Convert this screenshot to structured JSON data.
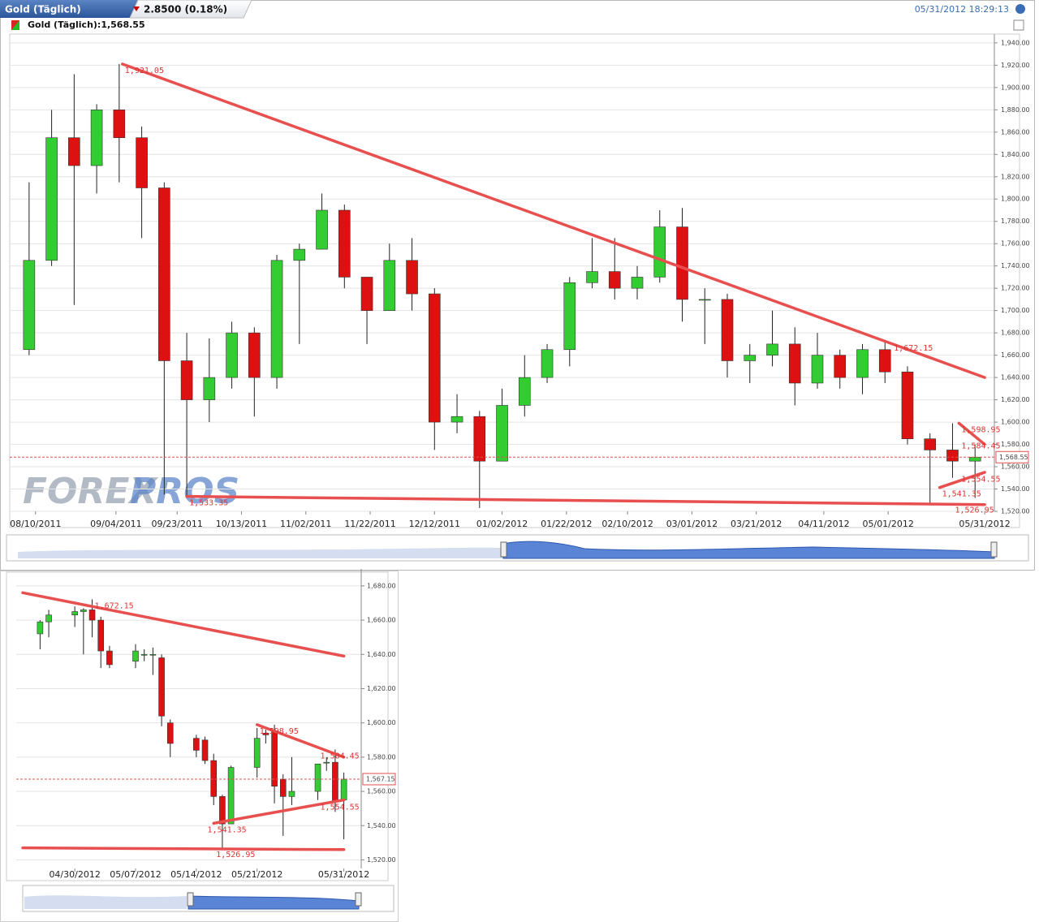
{
  "header": {
    "instrument": "Gold (Täglich)",
    "change": "2.8500 (0.18%)",
    "timestamp": "05/31/2012 18:29:13",
    "legend": "Gold (Täglich):1,568.55",
    "watermark": [
      "FOREX",
      "PROS"
    ]
  },
  "chart_data": [
    {
      "type": "candlestick",
      "x": [
        "08/08/2011",
        "08/15/2011",
        "08/22/2011",
        "08/29/2011",
        "09/05/2011",
        "09/12/2011",
        "09/19/2011",
        "09/26/2011",
        "10/03/2011",
        "10/10/2011",
        "10/17/2011",
        "10/24/2011",
        "10/31/2011",
        "11/07/2011",
        "11/14/2011",
        "11/21/2011",
        "11/28/2011",
        "12/05/2011",
        "12/12/2011",
        "12/19/2011",
        "12/26/2011",
        "01/02/2012",
        "01/09/2012",
        "01/16/2012",
        "01/23/2012",
        "01/30/2012",
        "02/06/2012",
        "02/13/2012",
        "02/20/2012",
        "02/27/2012",
        "03/05/2012",
        "03/12/2012",
        "03/19/2012",
        "03/26/2012",
        "04/02/2012",
        "04/09/2012",
        "04/16/2012",
        "04/23/2012",
        "04/30/2012",
        "05/07/2012",
        "05/14/2012",
        "05/21/2012",
        "05/28/2012"
      ],
      "open": [
        1665,
        1745,
        1855,
        1830,
        1880,
        1855,
        1810,
        1655,
        1620,
        1640,
        1680,
        1640,
        1745,
        1755,
        1790,
        1730,
        1700,
        1745,
        1715,
        1600,
        1605,
        1565,
        1615,
        1640,
        1665,
        1725,
        1735,
        1720,
        1730,
        1775,
        1710,
        1710,
        1655,
        1660,
        1670,
        1635,
        1660,
        1640,
        1665,
        1645,
        1585,
        1575,
        1565
      ],
      "high": [
        1815,
        1880,
        1912,
        1885,
        1921.05,
        1865,
        1815,
        1680,
        1675,
        1690,
        1685,
        1750,
        1760,
        1805,
        1795,
        1730,
        1760,
        1765,
        1720,
        1625,
        1610,
        1630,
        1660,
        1670,
        1730,
        1765,
        1765,
        1740,
        1790,
        1792,
        1720,
        1715,
        1670,
        1700,
        1685,
        1680,
        1665,
        1670,
        1672.15,
        1650,
        1590,
        1598.95,
        1580
      ],
      "low": [
        1660,
        1740,
        1705,
        1805,
        1815,
        1765,
        1535,
        1533.35,
        1600,
        1630,
        1605,
        1630,
        1670,
        1755,
        1720,
        1670,
        1700,
        1700,
        1575,
        1590,
        1523,
        1565,
        1605,
        1635,
        1650,
        1720,
        1710,
        1710,
        1725,
        1690,
        1670,
        1640,
        1635,
        1650,
        1615,
        1630,
        1630,
        1625,
        1635,
        1580,
        1526.95,
        1550,
        1532
      ],
      "close": [
        1745,
        1855,
        1830,
        1880,
        1855,
        1810,
        1655,
        1620,
        1640,
        1680,
        1640,
        1745,
        1755,
        1790,
        1730,
        1700,
        1745,
        1715,
        1600,
        1605,
        1565,
        1615,
        1640,
        1665,
        1725,
        1735,
        1720,
        1730,
        1775,
        1710,
        1710,
        1655,
        1660,
        1670,
        1635,
        1660,
        1640,
        1665,
        1645,
        1585,
        1575,
        1565,
        1568.55
      ],
      "up_color": "#33cc33",
      "down_color": "#dd1111",
      "xlim": [
        "08/04/2011",
        "06/03/2012"
      ],
      "xticks": [
        "08/10/2011",
        "09/04/2011",
        "09/23/2011",
        "10/13/2011",
        "11/02/2011",
        "11/22/2011",
        "12/12/2011",
        "01/02/2012",
        "01/22/2012",
        "02/10/2012",
        "03/01/2012",
        "03/21/2012",
        "04/11/2012",
        "05/01/2012",
        "05/31/2012"
      ],
      "ylim": [
        1520,
        1945
      ],
      "yticks": [
        {
          "value": 1520,
          "label": "1,520.00"
        },
        {
          "value": 1540,
          "label": "1,540.00"
        },
        {
          "value": 1560,
          "label": "1,560.00"
        },
        {
          "value": 1580,
          "label": "1,580.00"
        },
        {
          "value": 1600,
          "label": "1,600.00"
        },
        {
          "value": 1620,
          "label": "1,620.00"
        },
        {
          "value": 1640,
          "label": "1,640.00"
        },
        {
          "value": 1660,
          "label": "1,660.00"
        },
        {
          "value": 1680,
          "label": "1,680.00"
        },
        {
          "value": 1700,
          "label": "1,700.00"
        },
        {
          "value": 1720,
          "label": "1,720.00"
        },
        {
          "value": 1740,
          "label": "1,740.00"
        },
        {
          "value": 1760,
          "label": "1,760.00"
        },
        {
          "value": 1780,
          "label": "1,780.00"
        },
        {
          "value": 1800,
          "label": "1,800.00"
        },
        {
          "value": 1820,
          "label": "1,820.00"
        },
        {
          "value": 1840,
          "label": "1,840.00"
        },
        {
          "value": 1860,
          "label": "1,860.00"
        },
        {
          "value": 1880,
          "label": "1,880.00"
        },
        {
          "value": 1900,
          "label": "1,900.00"
        },
        {
          "value": 1920,
          "label": "1,920.00"
        },
        {
          "value": 1940,
          "label": "1,940.00"
        }
      ],
      "grid": true,
      "current": {
        "value": 1568.55,
        "label": "1,568.55"
      },
      "trendline_color": "#e85050",
      "trendlines": [
        {
          "x": [
            "09/06/2011",
            "05/31/2012"
          ],
          "values": [
            1921.05,
            1640
          ]
        },
        {
          "x": [
            "09/26/2011",
            "05/31/2012"
          ],
          "values": [
            1533.35,
            1526
          ]
        },
        {
          "x": [
            "05/23/2012",
            "05/31/2012"
          ],
          "values": [
            1598.95,
            1580
          ]
        },
        {
          "x": [
            "05/17/2012",
            "05/31/2012"
          ],
          "values": [
            1541.35,
            1555
          ]
        }
      ],
      "annotations": [
        {
          "x": "09/06/2011",
          "value": 1921.05,
          "label": "1,921.05"
        },
        {
          "x": "09/26/2011",
          "value": 1533.35,
          "label": "1,533.35"
        },
        {
          "x": "05/02/2012",
          "value": 1672.15,
          "label": "1,672.15"
        },
        {
          "x": "05/23/2012",
          "value": 1598.95,
          "label": "1,598.95"
        },
        {
          "x": "05/23/2012",
          "value": 1584.45,
          "label": "1,584.45"
        },
        {
          "x": "05/23/2012",
          "value": 1554.55,
          "label": "1,554.55"
        },
        {
          "x": "05/17/2012",
          "value": 1541.35,
          "label": "1,541.35"
        },
        {
          "x": "05/21/2012",
          "value": 1526.95,
          "label": "1,526.95"
        }
      ]
    },
    {
      "type": "candlestick",
      "x": [
        "04/26/2012",
        "04/27/2012",
        "04/30/2012",
        "05/01/2012",
        "05/02/2012",
        "05/03/2012",
        "05/04/2012",
        "05/07/2012",
        "05/08/2012",
        "05/09/2012",
        "05/10/2012",
        "05/11/2012",
        "05/14/2012",
        "05/15/2012",
        "05/16/2012",
        "05/17/2012",
        "05/18/2012",
        "05/21/2012",
        "05/22/2012",
        "05/23/2012",
        "05/24/2012",
        "05/25/2012",
        "05/28/2012",
        "05/29/2012",
        "05/30/2012",
        "05/31/2012"
      ],
      "open": [
        1652,
        1659,
        1663,
        1665,
        1666,
        1660,
        1642,
        1636,
        1640,
        1640,
        1638,
        1600,
        1591,
        1590,
        1578,
        1557,
        1541,
        1574,
        1594,
        1595,
        1567,
        1557,
        1560,
        1577,
        1577,
        1555
      ],
      "high": [
        1660,
        1666,
        1668,
        1667,
        1672.15,
        1662,
        1645,
        1646,
        1643,
        1644,
        1640,
        1602,
        1593,
        1592,
        1582,
        1558,
        1575,
        1597,
        1596,
        1598.95,
        1570,
        1580,
        1575,
        1580,
        1584.45,
        1571
      ],
      "low": [
        1643,
        1650,
        1656,
        1640,
        1650,
        1632,
        1632,
        1632,
        1636,
        1628,
        1598,
        1580,
        1580,
        1576,
        1552,
        1526.95,
        1541.35,
        1568,
        1588,
        1553,
        1534,
        1552,
        1555,
        1572,
        1548,
        1532
      ],
      "close": [
        1659,
        1663,
        1665,
        1666,
        1660,
        1642,
        1634,
        1642,
        1640,
        1640,
        1604,
        1588,
        1584,
        1578,
        1557,
        1541,
        1574,
        1591,
        1593,
        1563,
        1557,
        1560,
        1576,
        1577,
        1554,
        1567.15
      ],
      "up_color": "#33cc33",
      "down_color": "#dd1111",
      "xlim": [
        "04/24/2012",
        "06/02/2012"
      ],
      "xticks": [
        "04/30/2012",
        "05/07/2012",
        "05/14/2012",
        "05/21/2012",
        "05/31/2012"
      ],
      "ylim": [
        1515,
        1688
      ],
      "yticks": [
        {
          "value": 1520,
          "label": "1,520.00"
        },
        {
          "value": 1540,
          "label": "1,540.00"
        },
        {
          "value": 1560,
          "label": "1,560.00"
        },
        {
          "value": 1580,
          "label": "1,580.00"
        },
        {
          "value": 1600,
          "label": "1,600.00"
        },
        {
          "value": 1620,
          "label": "1,620.00"
        },
        {
          "value": 1640,
          "label": "1,640.00"
        },
        {
          "value": 1660,
          "label": "1,660.00"
        },
        {
          "value": 1680,
          "label": "1,680.00"
        }
      ],
      "grid": true,
      "current": {
        "value": 1567.15,
        "label": "1,567.15"
      },
      "trendline_color": "#e85050",
      "trendlines": [
        {
          "x": [
            "04/24/2012",
            "05/31/2012"
          ],
          "values": [
            1676,
            1639
          ]
        },
        {
          "x": [
            "04/24/2012",
            "05/31/2012"
          ],
          "values": [
            1527,
            1526
          ]
        },
        {
          "x": [
            "05/21/2012",
            "05/31/2012"
          ],
          "values": [
            1598.95,
            1580
          ]
        },
        {
          "x": [
            "05/16/2012",
            "05/31/2012"
          ],
          "values": [
            1541.35,
            1555
          ]
        }
      ],
      "annotations": [
        {
          "x": "05/02/2012",
          "value": 1672.15,
          "label": "1,672.15"
        },
        {
          "x": "05/21/2012",
          "value": 1598.95,
          "label": "1,598.95"
        },
        {
          "x": "05/28/2012",
          "value": 1584.45,
          "label": "1,584.45"
        },
        {
          "x": "05/28/2012",
          "value": 1554.55,
          "label": "1,554.55"
        },
        {
          "x": "05/15/2012",
          "value": 1541.35,
          "label": "1,541.35"
        },
        {
          "x": "05/16/2012",
          "value": 1526.95,
          "label": "1,526.95"
        }
      ]
    }
  ]
}
